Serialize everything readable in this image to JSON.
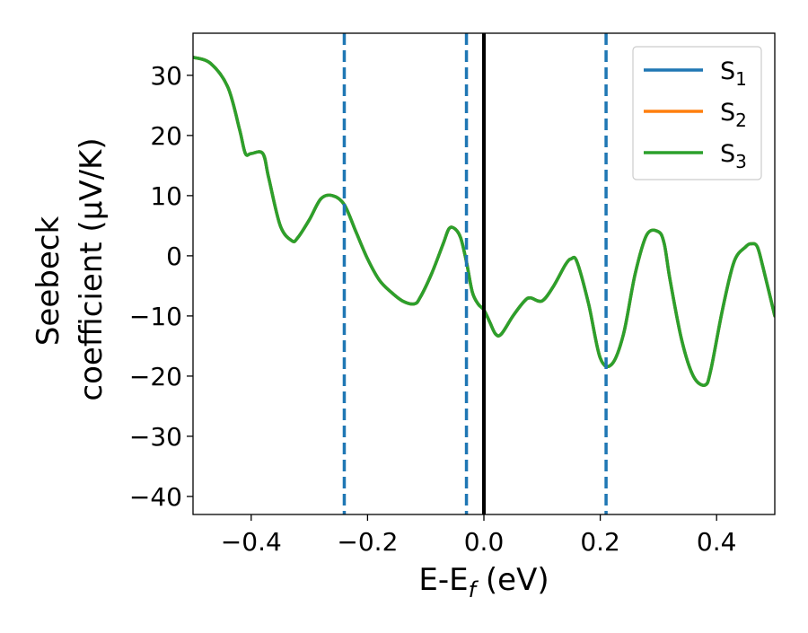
{
  "chart_data": {
    "type": "line",
    "xlabel": "E-E",
    "xlabel_sub": "f",
    "xlabel_unit": "(eV)",
    "ylabel_line1": "Seebeck",
    "ylabel_line2": "coefficient  (μV/K)",
    "xlim": [
      -0.5,
      0.5
    ],
    "ylim": [
      -43,
      37
    ],
    "x_ticks": [
      -0.4,
      -0.2,
      0.0,
      0.2,
      0.4
    ],
    "x_tick_labels": [
      "−0.4",
      "−0.2",
      "0.0",
      "0.2",
      "0.4"
    ],
    "y_ticks": [
      30,
      20,
      10,
      0,
      -10,
      -20,
      -30,
      -40
    ],
    "y_tick_labels": [
      "30",
      "20",
      "10",
      "0",
      "−10",
      "−20",
      "−30",
      "−40"
    ],
    "grid": false,
    "legend_position": "top-right",
    "vertical_lines": [
      {
        "x": -0.24,
        "style": "dashed",
        "color": "#1f77b4"
      },
      {
        "x": -0.03,
        "style": "dashed",
        "color": "#1f77b4"
      },
      {
        "x": 0.21,
        "style": "dashed",
        "color": "#1f77b4"
      },
      {
        "x": 0.0,
        "style": "solid",
        "color": "#000000"
      }
    ],
    "x": [
      -0.5,
      -0.47,
      -0.44,
      -0.42,
      -0.41,
      -0.4,
      -0.38,
      -0.37,
      -0.35,
      -0.33,
      -0.32,
      -0.3,
      -0.28,
      -0.26,
      -0.24,
      -0.22,
      -0.2,
      -0.18,
      -0.16,
      -0.14,
      -0.12,
      -0.11,
      -0.09,
      -0.07,
      -0.06,
      -0.05,
      -0.04,
      -0.03,
      -0.02,
      -0.01,
      0.0,
      0.01,
      0.02,
      0.03,
      0.05,
      0.07,
      0.08,
      0.1,
      0.12,
      0.14,
      0.15,
      0.16,
      0.18,
      0.2,
      0.22,
      0.24,
      0.26,
      0.28,
      0.3,
      0.31,
      0.32,
      0.34,
      0.36,
      0.38,
      0.39,
      0.41,
      0.43,
      0.45,
      0.46,
      0.47,
      0.48,
      0.5
    ],
    "series": [
      {
        "name": "S1",
        "color": "#1f77b4",
        "values": [
          33,
          32,
          28,
          21,
          17,
          17,
          17,
          13,
          5,
          2.5,
          3,
          6,
          9.5,
          10,
          8.5,
          4,
          -0.5,
          -4,
          -6,
          -7.5,
          -8,
          -7,
          -3,
          2,
          4.5,
          4.5,
          3,
          -1,
          -6,
          -8,
          -9,
          -11,
          -13,
          -13,
          -10,
          -7.5,
          -7,
          -7.5,
          -5,
          -1.5,
          -0.5,
          -1,
          -8,
          -17,
          -18,
          -13,
          -3,
          3.5,
          4,
          2,
          -4,
          -14,
          -20,
          -21.5,
          -19,
          -9,
          -1,
          1.5,
          2,
          1.5,
          -2,
          -10
        ]
      },
      {
        "name": "S2",
        "color": "#ff7f0e",
        "values": [
          33,
          32,
          28,
          21,
          17,
          17,
          17,
          13,
          5,
          2.5,
          3,
          6,
          9.5,
          10,
          8.5,
          4,
          -0.5,
          -4,
          -6,
          -7.5,
          -8,
          -7,
          -3,
          2,
          4.5,
          4.5,
          3,
          -1,
          -6,
          -8,
          -9,
          -11,
          -13,
          -13,
          -10,
          -7.5,
          -7,
          -7.5,
          -5,
          -1.5,
          -0.5,
          -1,
          -8,
          -17,
          -18,
          -13,
          -3,
          3.5,
          4,
          2,
          -4,
          -14,
          -20,
          -21.5,
          -19,
          -9,
          -1,
          1.5,
          2,
          1.5,
          -2,
          -10
        ]
      },
      {
        "name": "S3",
        "color": "#2ca02c",
        "values": [
          33,
          32,
          28,
          21,
          17,
          17,
          17,
          13,
          5,
          2.5,
          3,
          6,
          9.5,
          10,
          8.5,
          4,
          -0.5,
          -4,
          -6,
          -7.5,
          -8,
          -7,
          -3,
          2,
          4.5,
          4.5,
          3,
          -1,
          -6,
          -8,
          -9,
          -11,
          -13,
          -13,
          -10,
          -7.5,
          -7,
          -7.5,
          -5,
          -1.5,
          -0.5,
          -1,
          -8,
          -17,
          -18,
          -13,
          -3,
          3.5,
          4,
          2,
          -4,
          -14,
          -20,
          -21.5,
          -19,
          -9,
          -1,
          1.5,
          2,
          1.5,
          -2,
          -10
        ]
      }
    ],
    "legend": [
      {
        "label": "S",
        "sub": "1",
        "color": "#1f77b4"
      },
      {
        "label": "S",
        "sub": "2",
        "color": "#ff7f0e"
      },
      {
        "label": "S",
        "sub": "3",
        "color": "#2ca02c"
      }
    ]
  }
}
